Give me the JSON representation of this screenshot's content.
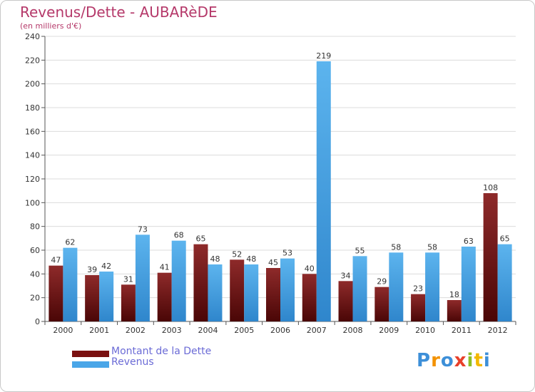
{
  "chart_data": {
    "type": "bar",
    "title": "Revenus/Dette - AUBARèDE",
    "subtitle": "(en milliers d'€)",
    "xlabel": "",
    "ylabel": "",
    "ylim": [
      0,
      240
    ],
    "yticks": [
      0,
      20,
      40,
      60,
      80,
      100,
      120,
      140,
      160,
      180,
      200,
      220,
      240
    ],
    "categories": [
      "2000",
      "2001",
      "2002",
      "2003",
      "2004",
      "2005",
      "2006",
      "2007",
      "2008",
      "2009",
      "2010",
      "2011",
      "2012"
    ],
    "series": [
      {
        "name": "Montant de la Dette",
        "color": "#7a1010",
        "values": [
          47,
          39,
          31,
          41,
          65,
          52,
          45,
          40,
          34,
          29,
          23,
          18,
          108
        ]
      },
      {
        "name": "Revenus",
        "color": "#4aa6e8",
        "values": [
          62,
          42,
          73,
          68,
          48,
          48,
          53,
          219,
          55,
          58,
          58,
          63,
          65
        ]
      }
    ],
    "legend_position": "bottom-left"
  },
  "logo": {
    "text": "Proxiti",
    "letters": [
      "P",
      "r",
      "o",
      "x",
      "i",
      "t",
      "i"
    ],
    "colors": [
      "#3d8fd8",
      "#f39200",
      "#3d8fd8",
      "#e8402a",
      "#8cbf26",
      "#f3b800",
      "#3d8fd8"
    ]
  }
}
